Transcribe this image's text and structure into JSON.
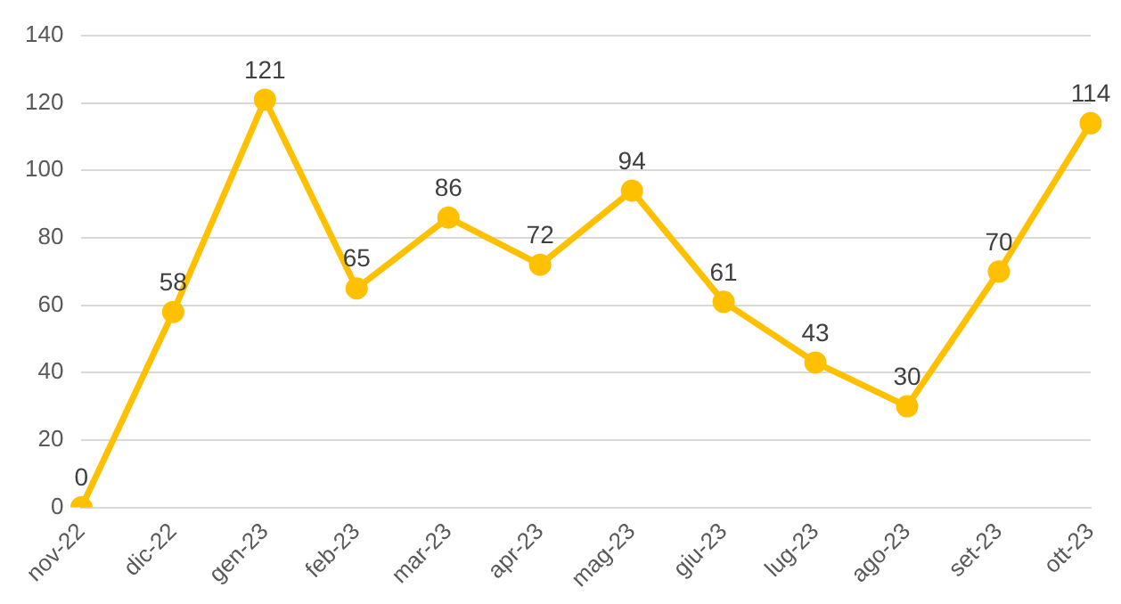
{
  "chart_data": {
    "type": "line",
    "categories": [
      "nov-22",
      "dic-22",
      "gen-23",
      "feb-23",
      "mar-23",
      "apr-23",
      "mag-23",
      "giu-23",
      "lug-23",
      "ago-23",
      "set-23",
      "ott-23"
    ],
    "series": [
      {
        "color": "#ffc000",
        "values": [
          0,
          58,
          121,
          65,
          86,
          72,
          94,
          61,
          43,
          30,
          70,
          114
        ]
      }
    ],
    "ylim": [
      0,
      140
    ],
    "yticks": [
      0,
      20,
      40,
      60,
      80,
      100,
      120,
      140
    ],
    "grid": "y",
    "legend": false,
    "marker": "circle",
    "line_style": "solid",
    "data_labels": true
  }
}
